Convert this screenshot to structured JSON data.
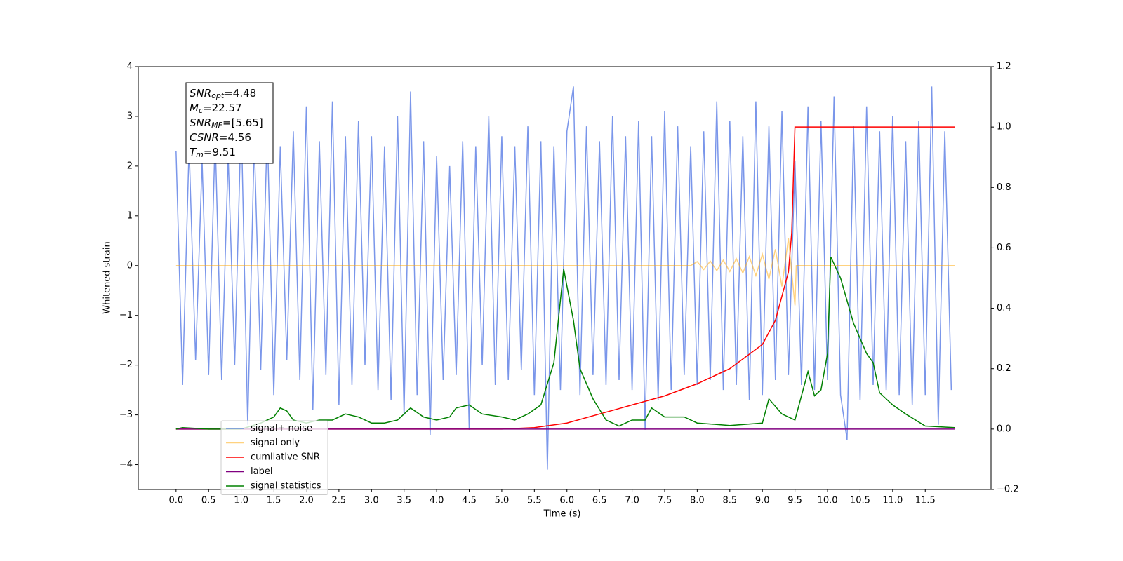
{
  "chart_data": {
    "type": "line",
    "xlabel": "Time (s)",
    "ylabel": "Whitened strain",
    "xlim": [
      -0.58,
      12.51
    ],
    "ylim": [
      -4.5,
      4
    ],
    "y2lim": [
      -0.2,
      1.2
    ],
    "xticks": [
      {
        "value": 0,
        "label": "0.0"
      },
      0.5,
      {
        "value": 1,
        "label": "1.0"
      },
      1.5,
      {
        "value": 2,
        "label": "2.0"
      },
      2.5,
      {
        "value": 3,
        "label": "3.0"
      },
      3.5,
      {
        "value": 4,
        "label": "4.0"
      },
      4.5,
      {
        "value": 5,
        "label": "5.0"
      },
      5.5,
      {
        "value": 6,
        "label": "6.0"
      },
      6.5,
      {
        "value": 7,
        "label": "7.0"
      },
      7.5,
      {
        "value": 8,
        "label": "8.0"
      },
      8.5,
      {
        "value": 9,
        "label": "9.0"
      },
      9.5,
      {
        "value": 10,
        "label": "10.0"
      },
      10.5,
      {
        "value": 11,
        "label": "11.0"
      },
      11.5
    ],
    "yticks": [
      {
        "value": -4,
        "label": "−4"
      },
      {
        "value": -3,
        "label": "−3"
      },
      {
        "value": -2,
        "label": "−2"
      },
      {
        "value": -1,
        "label": "−1"
      },
      0,
      1,
      2,
      3,
      4
    ],
    "y2ticks": [
      {
        "value": -0.2,
        "label": "−0.2"
      },
      {
        "value": 0,
        "label": "0.0"
      },
      0.2,
      0.4,
      0.6,
      0.8,
      {
        "value": 1,
        "label": "1.0"
      },
      1.2
    ],
    "legend": "lower left",
    "annotation": [
      {
        "main": "SNR",
        "sub": "opt",
        "text": "=4.48"
      },
      {
        "main": "M",
        "sub": "c",
        "text": "=22.57"
      },
      {
        "main": "SNR",
        "sub": "MF",
        "text": "=[5.65]"
      },
      {
        "main": "CSNR",
        "sub": null,
        "text": "=4.56"
      },
      {
        "main": "T",
        "sub": "m",
        "text": "=9.51"
      }
    ],
    "series": [
      {
        "name": "signal+ noise",
        "color": "#4169e1",
        "alpha": 0.7,
        "x": [
          0,
          0.1,
          0.2,
          0.3,
          0.4,
          0.5,
          0.6,
          0.7,
          0.8,
          0.9,
          1,
          1.1,
          1.2,
          1.3,
          1.4,
          1.5,
          1.6,
          1.7,
          1.8,
          1.9,
          2,
          2.1,
          2.2,
          2.3,
          2.4,
          2.5,
          2.6,
          2.7,
          2.8,
          2.9,
          3,
          3.1,
          3.2,
          3.3,
          3.4,
          3.5,
          3.6,
          3.7,
          3.8,
          3.9,
          4,
          4.1,
          4.2,
          4.3,
          4.4,
          4.5,
          4.6,
          4.7,
          4.8,
          4.9,
          5,
          5.1,
          5.2,
          5.3,
          5.4,
          5.5,
          5.6,
          5.7,
          5.8,
          5.9,
          6,
          6.1,
          6.2,
          6.3,
          6.4,
          6.5,
          6.6,
          6.7,
          6.8,
          6.9,
          7,
          7.1,
          7.2,
          7.3,
          7.4,
          7.5,
          7.6,
          7.7,
          7.8,
          7.9,
          8,
          8.1,
          8.2,
          8.3,
          8.4,
          8.5,
          8.6,
          8.7,
          8.8,
          8.9,
          9,
          9.1,
          9.2,
          9.3,
          9.4,
          9.5,
          9.6,
          9.7,
          9.8,
          9.9,
          10,
          10.1,
          10.2,
          10.3,
          10.4,
          10.5,
          10.6,
          10.7,
          10.8,
          10.9,
          11,
          11.1,
          11.2,
          11.3,
          11.4,
          11.5,
          11.6,
          11.7,
          11.8,
          11.9
        ],
        "values": [
          2.3,
          -2.4,
          2.4,
          -1.9,
          2.1,
          -2.2,
          2.6,
          -2.3,
          2.2,
          -2.0,
          3.0,
          -3.2,
          2.5,
          -2.1,
          2.8,
          -2.6,
          2.4,
          -1.9,
          2.7,
          -2.3,
          3.2,
          -2.9,
          2.5,
          -2.2,
          3.3,
          -2.8,
          2.6,
          -2.4,
          2.9,
          -2.0,
          2.6,
          -2.5,
          2.4,
          -2.7,
          3.0,
          -3.0,
          3.5,
          -2.6,
          2.5,
          -3.4,
          2.2,
          -2.3,
          2.0,
          -2.2,
          2.5,
          -3.3,
          2.4,
          -2.0,
          3.0,
          -2.4,
          2.6,
          -2.3,
          2.4,
          -2.1,
          2.8,
          -2.6,
          2.5,
          -4.1,
          2.4,
          -2.5,
          2.7,
          3.6,
          -2.6,
          2.8,
          -2.2,
          2.5,
          -2.4,
          3.0,
          -2.3,
          2.6,
          -2.5,
          2.9,
          -3.3,
          2.6,
          -2.7,
          3.1,
          -2.5,
          2.8,
          -2.2,
          2.4,
          -2.4,
          2.7,
          -2.3,
          3.3,
          -2.5,
          2.9,
          -2.4,
          2.6,
          -2.7,
          3.3,
          -2.6,
          2.8,
          -2.3,
          3.1,
          -2.2,
          2.1,
          -2.4,
          3.2,
          -2.5,
          2.9,
          -2.3,
          3.4,
          -2.6,
          -3.5,
          2.8,
          -2.7,
          3.2,
          -2.4,
          2.7,
          -2.5,
          3.0,
          -2.6,
          2.5,
          -2.8,
          2.9,
          -2.6,
          3.6,
          -3.2,
          2.7,
          -2.5
        ]
      },
      {
        "name": "signal only",
        "color": "#ffa500",
        "alpha": 0.5,
        "x": [
          0,
          7.9,
          8.0,
          8.1,
          8.2,
          8.3,
          8.4,
          8.5,
          8.6,
          8.7,
          8.8,
          8.9,
          9.0,
          9.1,
          9.2,
          9.3,
          9.4,
          9.5,
          9.52,
          11.95
        ],
        "values": [
          0,
          0,
          0.08,
          -0.08,
          0.09,
          -0.1,
          0.11,
          -0.12,
          0.14,
          -0.15,
          0.18,
          -0.2,
          0.23,
          -0.27,
          0.33,
          -0.42,
          0.55,
          -0.8,
          0,
          0
        ]
      },
      {
        "name": "cumilative SNR",
        "color": "#ff0000",
        "axis": "y2",
        "x": [
          0,
          5.0,
          5.5,
          6.0,
          6.5,
          7.0,
          7.5,
          8.0,
          8.5,
          9.0,
          9.2,
          9.3,
          9.4,
          9.45,
          9.5,
          11.95
        ],
        "values": [
          0,
          0,
          0.005,
          0.02,
          0.05,
          0.08,
          0.11,
          0.15,
          0.2,
          0.28,
          0.36,
          0.44,
          0.52,
          0.65,
          1.0,
          1.0
        ]
      },
      {
        "name": "label",
        "color": "#800080",
        "axis": "y2",
        "x": [
          0,
          11.95
        ],
        "values": [
          0,
          0
        ]
      },
      {
        "name": "signal statistics",
        "color": "#008000",
        "axis": "y2",
        "x": [
          0,
          0.1,
          0.5,
          1.0,
          1.3,
          1.5,
          1.6,
          1.7,
          1.8,
          2.0,
          2.2,
          2.4,
          2.6,
          2.8,
          3.0,
          3.2,
          3.4,
          3.6,
          3.8,
          4.0,
          4.2,
          4.3,
          4.5,
          4.7,
          5.0,
          5.2,
          5.4,
          5.6,
          5.8,
          5.95,
          6.1,
          6.2,
          6.4,
          6.6,
          6.8,
          7.0,
          7.2,
          7.3,
          7.5,
          7.8,
          8.0,
          8.5,
          9.0,
          9.1,
          9.3,
          9.5,
          9.7,
          9.8,
          9.9,
          10.0,
          10.05,
          10.2,
          10.4,
          10.5,
          10.6,
          10.7,
          10.8,
          11.0,
          11.2,
          11.5,
          11.95
        ],
        "values": [
          0,
          0.005,
          0,
          0,
          0.02,
          0.04,
          0.07,
          0.06,
          0.03,
          0.02,
          0.03,
          0.03,
          0.05,
          0.04,
          0.02,
          0.02,
          0.03,
          0.07,
          0.04,
          0.03,
          0.04,
          0.07,
          0.08,
          0.05,
          0.04,
          0.03,
          0.05,
          0.08,
          0.22,
          0.53,
          0.36,
          0.2,
          0.1,
          0.03,
          0.01,
          0.03,
          0.03,
          0.07,
          0.04,
          0.04,
          0.02,
          0.012,
          0.02,
          0.1,
          0.05,
          0.03,
          0.19,
          0.11,
          0.13,
          0.25,
          0.57,
          0.5,
          0.35,
          0.3,
          0.25,
          0.22,
          0.12,
          0.08,
          0.05,
          0.01,
          0.005
        ]
      }
    ]
  }
}
